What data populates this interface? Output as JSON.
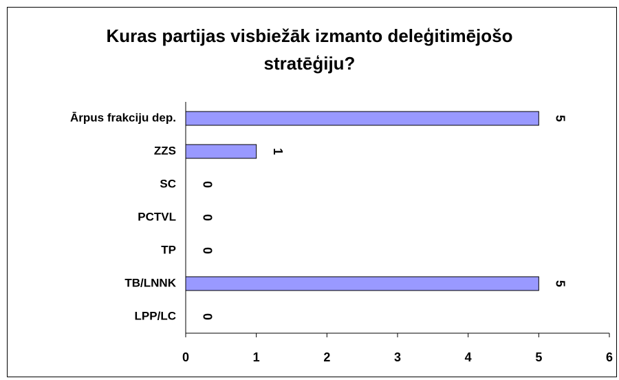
{
  "chart_data": {
    "type": "bar",
    "orientation": "horizontal",
    "title": "Kuras partijas visbiežāk izmanto deleģitimējošo stratēģiju?",
    "categories": [
      "Ārpus frakciju dep.",
      "ZZS",
      "SC",
      "PCTVL",
      "TP",
      "TB/LNNK",
      "LPP/LC"
    ],
    "values": [
      5,
      1,
      0,
      0,
      0,
      5,
      0
    ],
    "color": "#9999ff",
    "xlim": [
      0,
      6
    ],
    "xticks": [
      0,
      1,
      2,
      3,
      4,
      5,
      6
    ],
    "grid": false
  }
}
